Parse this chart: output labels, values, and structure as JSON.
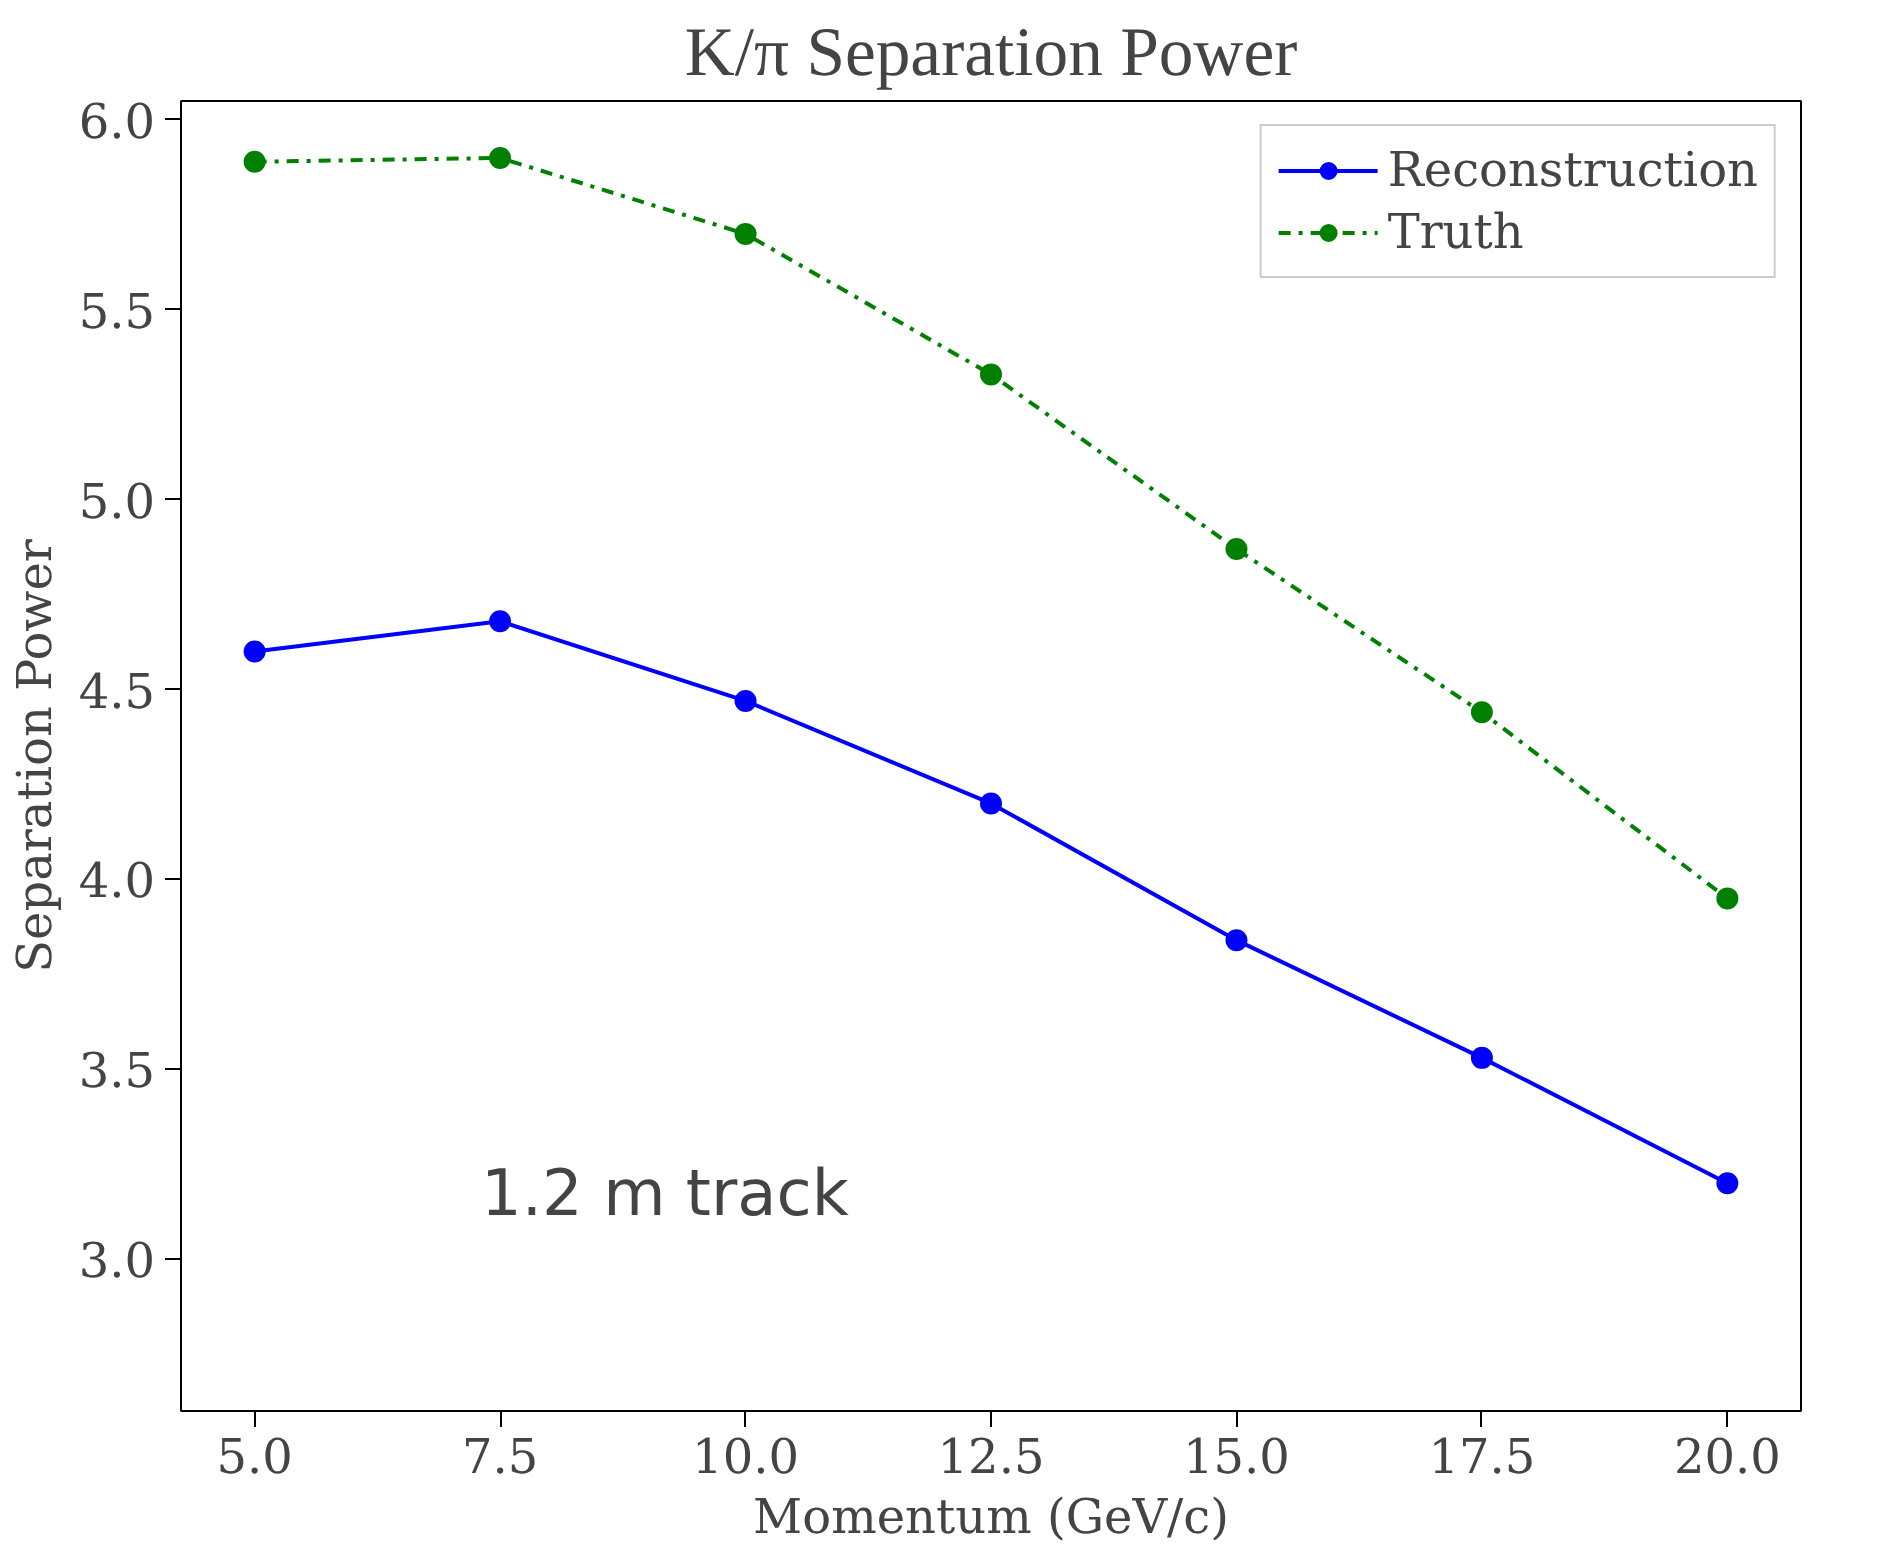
{
  "chart_data": {
    "type": "line",
    "title": "K/π Separation Power",
    "xlabel": "Momentum (GeV/c)",
    "ylabel": "Separation Power",
    "x": [
      5.0,
      7.5,
      10.0,
      12.5,
      15.0,
      17.5,
      20.0
    ],
    "series": [
      {
        "name": "Reconstruction",
        "color": "#0000ff",
        "values": [
          4.6,
          4.68,
          4.47,
          4.2,
          3.84,
          3.53,
          3.2
        ],
        "line_style": "solid"
      },
      {
        "name": "Truth",
        "color": "#008000",
        "values": [
          5.89,
          5.9,
          5.7,
          5.33,
          4.87,
          4.44,
          3.95
        ],
        "line_style": "dashdot"
      }
    ],
    "xlim": [
      4.25,
      20.75
    ],
    "ylim": [
      2.6,
      6.05
    ],
    "xticks": [
      {
        "value": 5,
        "label": "5.0"
      },
      {
        "value": 7.5,
        "label": "7.5"
      },
      {
        "value": 10,
        "label": "10.0"
      },
      {
        "value": 12.5,
        "label": "12.5"
      },
      {
        "value": 15,
        "label": "15.0"
      },
      {
        "value": 17.5,
        "label": "17.5"
      },
      {
        "value": 20,
        "label": "20.0"
      }
    ],
    "yticks": [
      {
        "value": 3,
        "label": "3.0"
      },
      {
        "value": 3.5,
        "label": "3.5"
      },
      {
        "value": 4,
        "label": "4.0"
      },
      {
        "value": 4.5,
        "label": "4.5"
      },
      {
        "value": 5,
        "label": "5.0"
      },
      {
        "value": 5.5,
        "label": "5.5"
      },
      {
        "value": 6,
        "label": "6.0"
      }
    ],
    "annotations": [
      "1.2 m track"
    ],
    "legend": "top right",
    "grid": false,
    "marker": "circle"
  }
}
